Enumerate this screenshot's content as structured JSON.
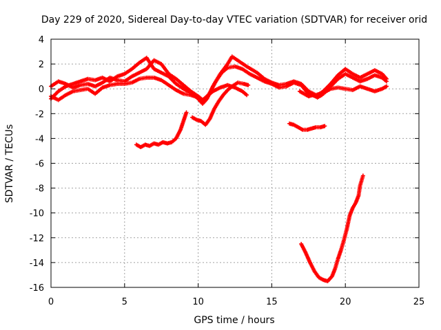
{
  "chart_data": {
    "type": "scatter",
    "title": "Day 229 of 2020, Sidereal Day-to-day VTEC variation (SDTVAR) for receiver orid",
    "xlabel": "GPS time / hours",
    "ylabel": "SDTVAR / TECUs",
    "xlim": [
      0,
      25
    ],
    "ylim": [
      -16,
      4
    ],
    "xticks": [
      0,
      5,
      10,
      15,
      20,
      25
    ],
    "yticks": [
      4,
      2,
      0,
      -2,
      -4,
      -6,
      -8,
      -10,
      -12,
      -14,
      -16
    ],
    "grid": true,
    "marker": "plus",
    "color": "#ff0000",
    "series": [
      {
        "points": [
          [
            0,
            -0.8
          ],
          [
            0.5,
            -0.2
          ],
          [
            1,
            0.2
          ],
          [
            1.5,
            0.4
          ],
          [
            2,
            0.6
          ],
          [
            2.5,
            0.8
          ],
          [
            3,
            0.7
          ],
          [
            3.5,
            0.9
          ],
          [
            4,
            0.6
          ],
          [
            4.5,
            1.0
          ],
          [
            5,
            1.2
          ],
          [
            5.5,
            1.6
          ],
          [
            6,
            2.1
          ],
          [
            6.5,
            2.5
          ],
          [
            7,
            1.6
          ],
          [
            7.5,
            1.3
          ],
          [
            8,
            1.0
          ],
          [
            8.5,
            0.4
          ],
          [
            9,
            0.0
          ],
          [
            9.5,
            -0.3
          ],
          [
            10,
            -0.8
          ],
          [
            10.3,
            -1.2
          ],
          [
            10.6,
            -0.8
          ],
          [
            11,
            0.2
          ],
          [
            11.5,
            1.2
          ],
          [
            12,
            2.0
          ],
          [
            12.3,
            2.6
          ],
          [
            12.8,
            2.2
          ],
          [
            13.3,
            1.8
          ],
          [
            14,
            1.3
          ],
          [
            14.5,
            0.8
          ],
          [
            15,
            0.5
          ],
          [
            15.5,
            0.3
          ],
          [
            16,
            0.4
          ],
          [
            16.5,
            0.6
          ],
          [
            17,
            0.4
          ],
          [
            17.5,
            -0.2
          ],
          [
            18,
            -0.5
          ],
          [
            18.5,
            -0.3
          ],
          [
            19,
            0.2
          ],
          [
            19.5,
            0.8
          ],
          [
            20,
            1.2
          ],
          [
            20.5,
            0.9
          ],
          [
            21,
            0.6
          ],
          [
            21.5,
            0.8
          ],
          [
            22,
            1.1
          ],
          [
            22.5,
            0.9
          ],
          [
            22.8,
            0.6
          ]
        ]
      },
      {
        "points": [
          [
            0,
            0.2
          ],
          [
            0.5,
            0.6
          ],
          [
            1,
            0.4
          ],
          [
            1.5,
            0.1
          ],
          [
            2,
            0.3
          ],
          [
            2.5,
            0.4
          ],
          [
            3,
            0.2
          ],
          [
            3.5,
            0.5
          ],
          [
            4,
            0.9
          ],
          [
            4.5,
            0.7
          ],
          [
            5,
            0.6
          ],
          [
            5.5,
            1.0
          ],
          [
            6,
            1.3
          ],
          [
            6.5,
            1.6
          ],
          [
            7,
            2.3
          ],
          [
            7.5,
            2.0
          ],
          [
            8,
            1.2
          ],
          [
            8.5,
            0.8
          ],
          [
            9,
            0.3
          ],
          [
            9.5,
            -0.2
          ],
          [
            10,
            -0.6
          ],
          [
            10.4,
            -1.0
          ],
          [
            10.8,
            -0.3
          ],
          [
            11.2,
            0.6
          ],
          [
            11.6,
            1.3
          ],
          [
            12,
            1.7
          ],
          [
            12.5,
            1.8
          ],
          [
            13,
            1.6
          ],
          [
            13.5,
            1.2
          ],
          [
            14,
            0.9
          ],
          [
            14.5,
            0.6
          ],
          [
            15,
            0.4
          ],
          [
            15.5,
            0.1
          ],
          [
            16,
            0.2
          ],
          [
            16.5,
            0.5
          ],
          [
            17,
            0.3
          ],
          [
            17.5,
            -0.4
          ],
          [
            18,
            -0.6
          ],
          [
            18.5,
            -0.2
          ],
          [
            19,
            0.4
          ],
          [
            19.5,
            1.1
          ],
          [
            20,
            1.6
          ],
          [
            20.5,
            1.2
          ],
          [
            21,
            0.9
          ],
          [
            21.5,
            1.2
          ],
          [
            22,
            1.5
          ],
          [
            22.5,
            1.2
          ],
          [
            22.8,
            0.8
          ]
        ]
      },
      {
        "points": [
          [
            0,
            -0.6
          ],
          [
            0.5,
            -0.9
          ],
          [
            1,
            -0.5
          ],
          [
            1.5,
            -0.2
          ],
          [
            2,
            -0.1
          ],
          [
            2.5,
            0.0
          ],
          [
            3,
            -0.4
          ],
          [
            3.5,
            0.1
          ],
          [
            4,
            0.3
          ],
          [
            4.5,
            0.4
          ],
          [
            5,
            0.4
          ],
          [
            5.5,
            0.5
          ],
          [
            6,
            0.8
          ],
          [
            6.5,
            0.9
          ],
          [
            7,
            0.9
          ],
          [
            7.5,
            0.7
          ],
          [
            8,
            0.3
          ],
          [
            8.5,
            -0.1
          ],
          [
            9,
            -0.4
          ],
          [
            9.5,
            -0.5
          ],
          [
            10,
            -0.7
          ],
          [
            10.3,
            -0.9
          ],
          [
            10.6,
            -0.6
          ],
          [
            11,
            -0.2
          ],
          [
            11.5,
            0.1
          ],
          [
            12,
            0.3
          ],
          [
            12.5,
            0.1
          ],
          [
            13,
            -0.2
          ],
          [
            13.3,
            -0.5
          ]
        ]
      },
      {
        "points": [
          [
            16.9,
            -0.2
          ],
          [
            17.2,
            -0.4
          ],
          [
            17.5,
            -0.6
          ],
          [
            17.8,
            -0.5
          ],
          [
            18.1,
            -0.7
          ],
          [
            18.4,
            -0.5
          ],
          [
            18.7,
            -0.2
          ],
          [
            19,
            0.0
          ],
          [
            19.5,
            0.1
          ],
          [
            20,
            0.0
          ],
          [
            20.5,
            -0.1
          ],
          [
            21,
            0.2
          ],
          [
            21.5,
            0.0
          ],
          [
            22,
            -0.2
          ],
          [
            22.5,
            0.0
          ],
          [
            22.8,
            0.2
          ]
        ]
      },
      {
        "points": [
          [
            5.8,
            -4.5
          ],
          [
            6.1,
            -4.7
          ],
          [
            6.4,
            -4.5
          ],
          [
            6.7,
            -4.6
          ],
          [
            7.0,
            -4.4
          ],
          [
            7.3,
            -4.5
          ],
          [
            7.6,
            -4.3
          ],
          [
            7.9,
            -4.4
          ],
          [
            8.2,
            -4.3
          ],
          [
            8.5,
            -4.0
          ],
          [
            8.8,
            -3.3
          ],
          [
            9.0,
            -2.6
          ],
          [
            9.2,
            -1.9
          ]
        ]
      },
      {
        "points": [
          [
            9.6,
            -2.3
          ],
          [
            9.9,
            -2.5
          ],
          [
            10.2,
            -2.6
          ],
          [
            10.5,
            -2.9
          ],
          [
            10.8,
            -2.4
          ],
          [
            11.1,
            -1.6
          ],
          [
            11.4,
            -1.0
          ],
          [
            11.7,
            -0.5
          ],
          [
            12.0,
            -0.1
          ],
          [
            12.3,
            0.2
          ],
          [
            12.7,
            0.5
          ],
          [
            13.1,
            0.4
          ],
          [
            13.4,
            0.3
          ]
        ]
      },
      {
        "points": [
          [
            16.2,
            -2.8
          ],
          [
            16.5,
            -2.9
          ],
          [
            16.8,
            -3.1
          ],
          [
            17.1,
            -3.3
          ],
          [
            17.4,
            -3.3
          ],
          [
            17.7,
            -3.2
          ],
          [
            18.0,
            -3.1
          ],
          [
            18.3,
            -3.1
          ],
          [
            18.6,
            -3.0
          ]
        ]
      },
      {
        "points": [
          [
            17.0,
            -12.5
          ],
          [
            17.3,
            -13.2
          ],
          [
            17.6,
            -14.0
          ],
          [
            17.9,
            -14.7
          ],
          [
            18.2,
            -15.2
          ],
          [
            18.5,
            -15.4
          ],
          [
            18.8,
            -15.5
          ],
          [
            19.1,
            -15.1
          ],
          [
            19.3,
            -14.5
          ],
          [
            19.5,
            -13.7
          ],
          [
            19.7,
            -13.0
          ],
          [
            19.9,
            -12.2
          ],
          [
            20.1,
            -11.3
          ],
          [
            20.3,
            -10.2
          ],
          [
            20.5,
            -9.6
          ],
          [
            20.7,
            -9.2
          ],
          [
            20.9,
            -8.6
          ],
          [
            21.0,
            -7.8
          ],
          [
            21.2,
            -7.0
          ]
        ]
      }
    ]
  }
}
